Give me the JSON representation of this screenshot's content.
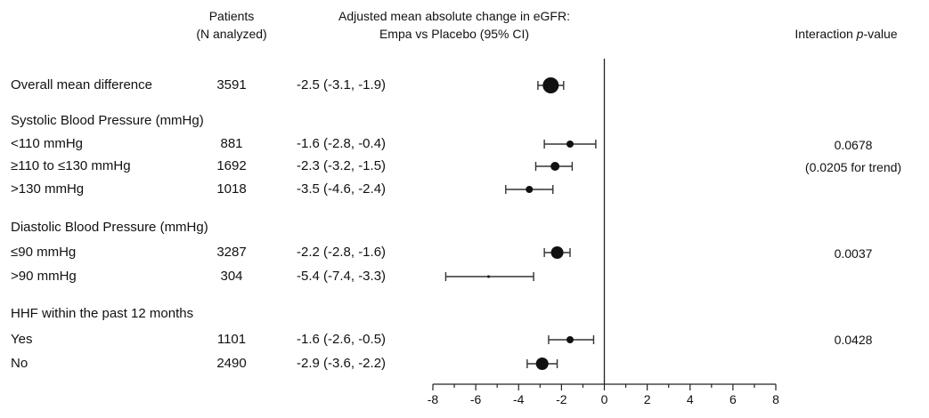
{
  "headers": {
    "patients_line1": "Patients",
    "patients_line2": "(N analyzed)",
    "effect_line1": "Adjusted mean absolute change in eGFR:",
    "effect_line2": "Empa vs Placebo (95% CI)",
    "pvalue_prefix": "Interaction ",
    "pvalue_italic": "p",
    "pvalue_suffix": "-value"
  },
  "chart_data": {
    "type": "forest",
    "x_range": [
      -8,
      8
    ],
    "x_ticks": [
      -8,
      -6,
      -4,
      -2,
      0,
      2,
      4,
      6,
      8
    ],
    "reference_line": 0,
    "rows": [
      {
        "kind": "row",
        "label": "Overall mean difference",
        "n": "3591",
        "ci_text": "-2.5 (-3.1, -1.9)",
        "est": -2.5,
        "lo": -3.1,
        "hi": -1.9,
        "size": 9
      },
      {
        "kind": "group",
        "label": "Systolic Blood Pressure (mmHg)"
      },
      {
        "kind": "row",
        "label": "<110 mmHg",
        "n": "881",
        "ci_text": "-1.6 (-2.8, -0.4)",
        "est": -1.6,
        "lo": -2.8,
        "hi": -0.4,
        "size": 4
      },
      {
        "kind": "row",
        "label": "≥110 to ≤130 mmHg",
        "n": "1692",
        "ci_text": "-2.3 (-3.2, -1.5)",
        "est": -2.3,
        "lo": -3.2,
        "hi": -1.5,
        "size": 5
      },
      {
        "kind": "row",
        "label": ">130 mmHg",
        "n": "1018",
        "ci_text": "-3.5 (-4.6, -2.4)",
        "est": -3.5,
        "lo": -4.6,
        "hi": -2.4,
        "size": 4
      },
      {
        "kind": "group",
        "label": "Diastolic Blood Pressure (mmHg)"
      },
      {
        "kind": "row",
        "label": "≤90 mmHg",
        "n": "3287",
        "ci_text": "-2.2 (-2.8, -1.6)",
        "est": -2.2,
        "lo": -2.8,
        "hi": -1.6,
        "size": 7
      },
      {
        "kind": "row",
        "label": ">90 mmHg",
        "n": "304",
        "ci_text": "-5.4 (-7.4, -3.3)",
        "est": -5.4,
        "lo": -7.4,
        "hi": -3.3,
        "size": 1.5
      },
      {
        "kind": "group",
        "label": "HHF within the past 12 months"
      },
      {
        "kind": "row",
        "label": "Yes",
        "n": "1101",
        "ci_text": "-1.6 (-2.6, -0.5)",
        "est": -1.6,
        "lo": -2.6,
        "hi": -0.5,
        "size": 4
      },
      {
        "kind": "row",
        "label": "No",
        "n": "2490",
        "ci_text": "-2.9 (-3.6, -2.2)",
        "est": -2.9,
        "lo": -3.6,
        "hi": -2.2,
        "size": 7
      }
    ],
    "interaction_pvalues": [
      {
        "group": "Systolic Blood Pressure (mmHg)",
        "value": "0.0678",
        "note": "(0.0205 for trend)"
      },
      {
        "group": "Diastolic Blood Pressure (mmHg)",
        "value": "0.0037"
      },
      {
        "group": "HHF within the past 12 months",
        "value": "0.0428"
      }
    ]
  }
}
